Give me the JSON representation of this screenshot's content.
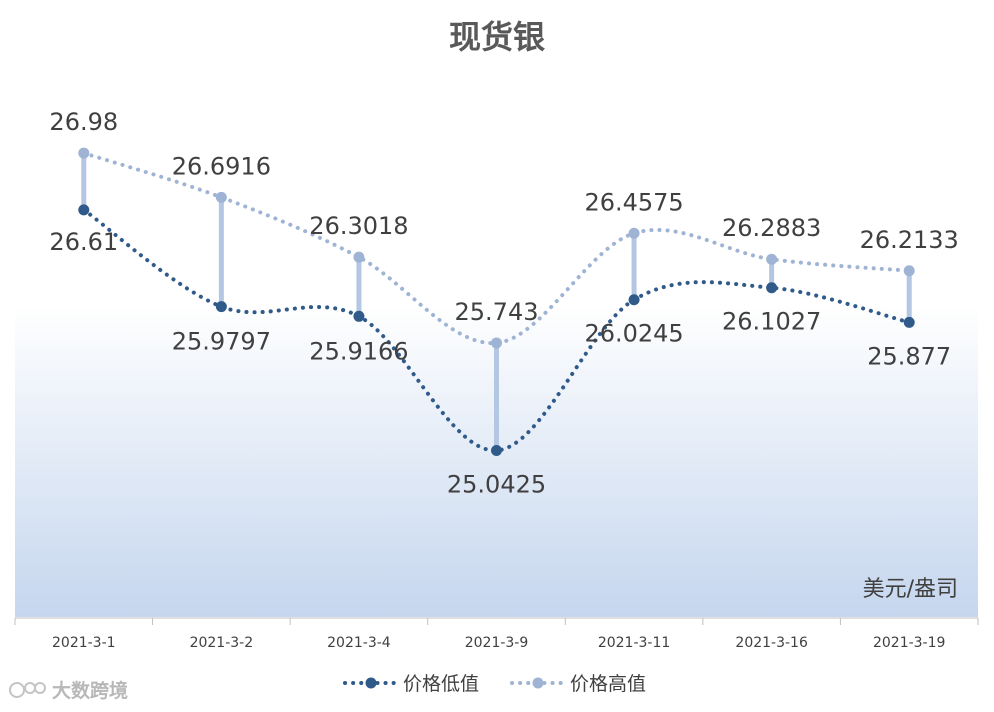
{
  "chart_data": {
    "type": "line",
    "title": "现货银",
    "unit": "美元/盎司",
    "categories": [
      "2021-3-1",
      "2021-3-2",
      "2021-3-4",
      "2021-3-9",
      "2021-3-11",
      "2021-3-16",
      "2021-3-19"
    ],
    "series": [
      {
        "name": "价格低值",
        "values": [
          26.61,
          25.9797,
          25.9166,
          25.0425,
          26.0245,
          26.1027,
          25.877
        ],
        "labels": [
          "26.61",
          "25.9797",
          "25.9166",
          "25.0425",
          "26.0245",
          "26.1027",
          "25.877"
        ],
        "color": "#2f5a8a"
      },
      {
        "name": "价格高值",
        "values": [
          26.98,
          26.6916,
          26.3018,
          25.743,
          26.4575,
          26.2883,
          26.2133
        ],
        "labels": [
          "26.98",
          "26.6916",
          "26.3018",
          "25.743",
          "26.4575",
          "26.2883",
          "26.2133"
        ],
        "color": "#9fb4d4"
      }
    ],
    "legend_position": "bottom",
    "grid": false,
    "smooth": true,
    "high_low_lines": true
  },
  "watermark": "大数跨境"
}
